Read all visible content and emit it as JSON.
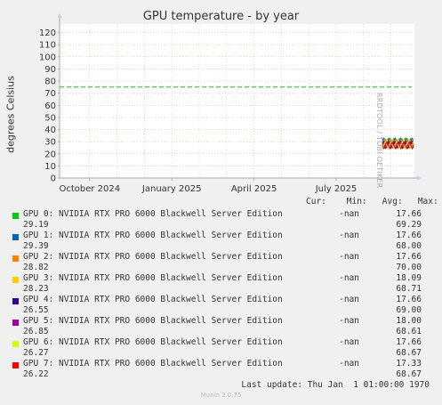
{
  "chart_data": {
    "type": "line",
    "title": "GPU temperature - by year",
    "ylabel": "degrees Celsius",
    "side_label": "RRDTOOL / TOBI OETIKER",
    "yticks": [
      0,
      10,
      20,
      30,
      40,
      50,
      60,
      70,
      80,
      90,
      100,
      110,
      120
    ],
    "ylim": [
      0,
      127
    ],
    "xticks": [
      "October 2024",
      "January 2025",
      "April 2025",
      "July 2025"
    ],
    "warning_line": 75,
    "grid": true,
    "legend_header": "Cur:    Min:   Avg:   Max:",
    "series": [
      {
        "name": "GPU 0: NVIDIA RTX PRO 6000 Blackwell Server Edition",
        "color": "#00cc00",
        "cur": "29.19",
        "min": "-nan",
        "avg": "17.66",
        "max": "69.29"
      },
      {
        "name": "GPU 1: NVIDIA RTX PRO 6000 Blackwell Server Edition",
        "color": "#0066b3",
        "cur": "29.39",
        "min": "-nan",
        "avg": "17.66",
        "max": "68.00"
      },
      {
        "name": "GPU 2: NVIDIA RTX PRO 6000 Blackwell Server Edition",
        "color": "#ff8000",
        "cur": "28.82",
        "min": "-nan",
        "avg": "17.66",
        "max": "70.00"
      },
      {
        "name": "GPU 3: NVIDIA RTX PRO 6000 Blackwell Server Edition",
        "color": "#ffcc00",
        "cur": "28.23",
        "min": "-nan",
        "avg": "18.09",
        "max": "68.71"
      },
      {
        "name": "GPU 4: NVIDIA RTX PRO 6000 Blackwell Server Edition",
        "color": "#330099",
        "cur": "26.55",
        "min": "-nan",
        "avg": "17.66",
        "max": "69.00"
      },
      {
        "name": "GPU 5: NVIDIA RTX PRO 6000 Blackwell Server Edition",
        "color": "#990099",
        "cur": "26.85",
        "min": "-nan",
        "avg": "18.00",
        "max": "68.61"
      },
      {
        "name": "GPU 6: NVIDIA RTX PRO 6000 Blackwell Server Edition",
        "color": "#ccff00",
        "cur": "26.27",
        "min": "-nan",
        "avg": "17.66",
        "max": "68.67"
      },
      {
        "name": "GPU 7: NVIDIA RTX PRO 6000 Blackwell Server Edition",
        "color": "#ff0000",
        "cur": "26.22",
        "min": "-nan",
        "avg": "17.33",
        "max": "68.67"
      }
    ],
    "last_update": "Last update: Thu Jan  1 01:00:00 1970",
    "footer": "Munin 2.0.75"
  }
}
